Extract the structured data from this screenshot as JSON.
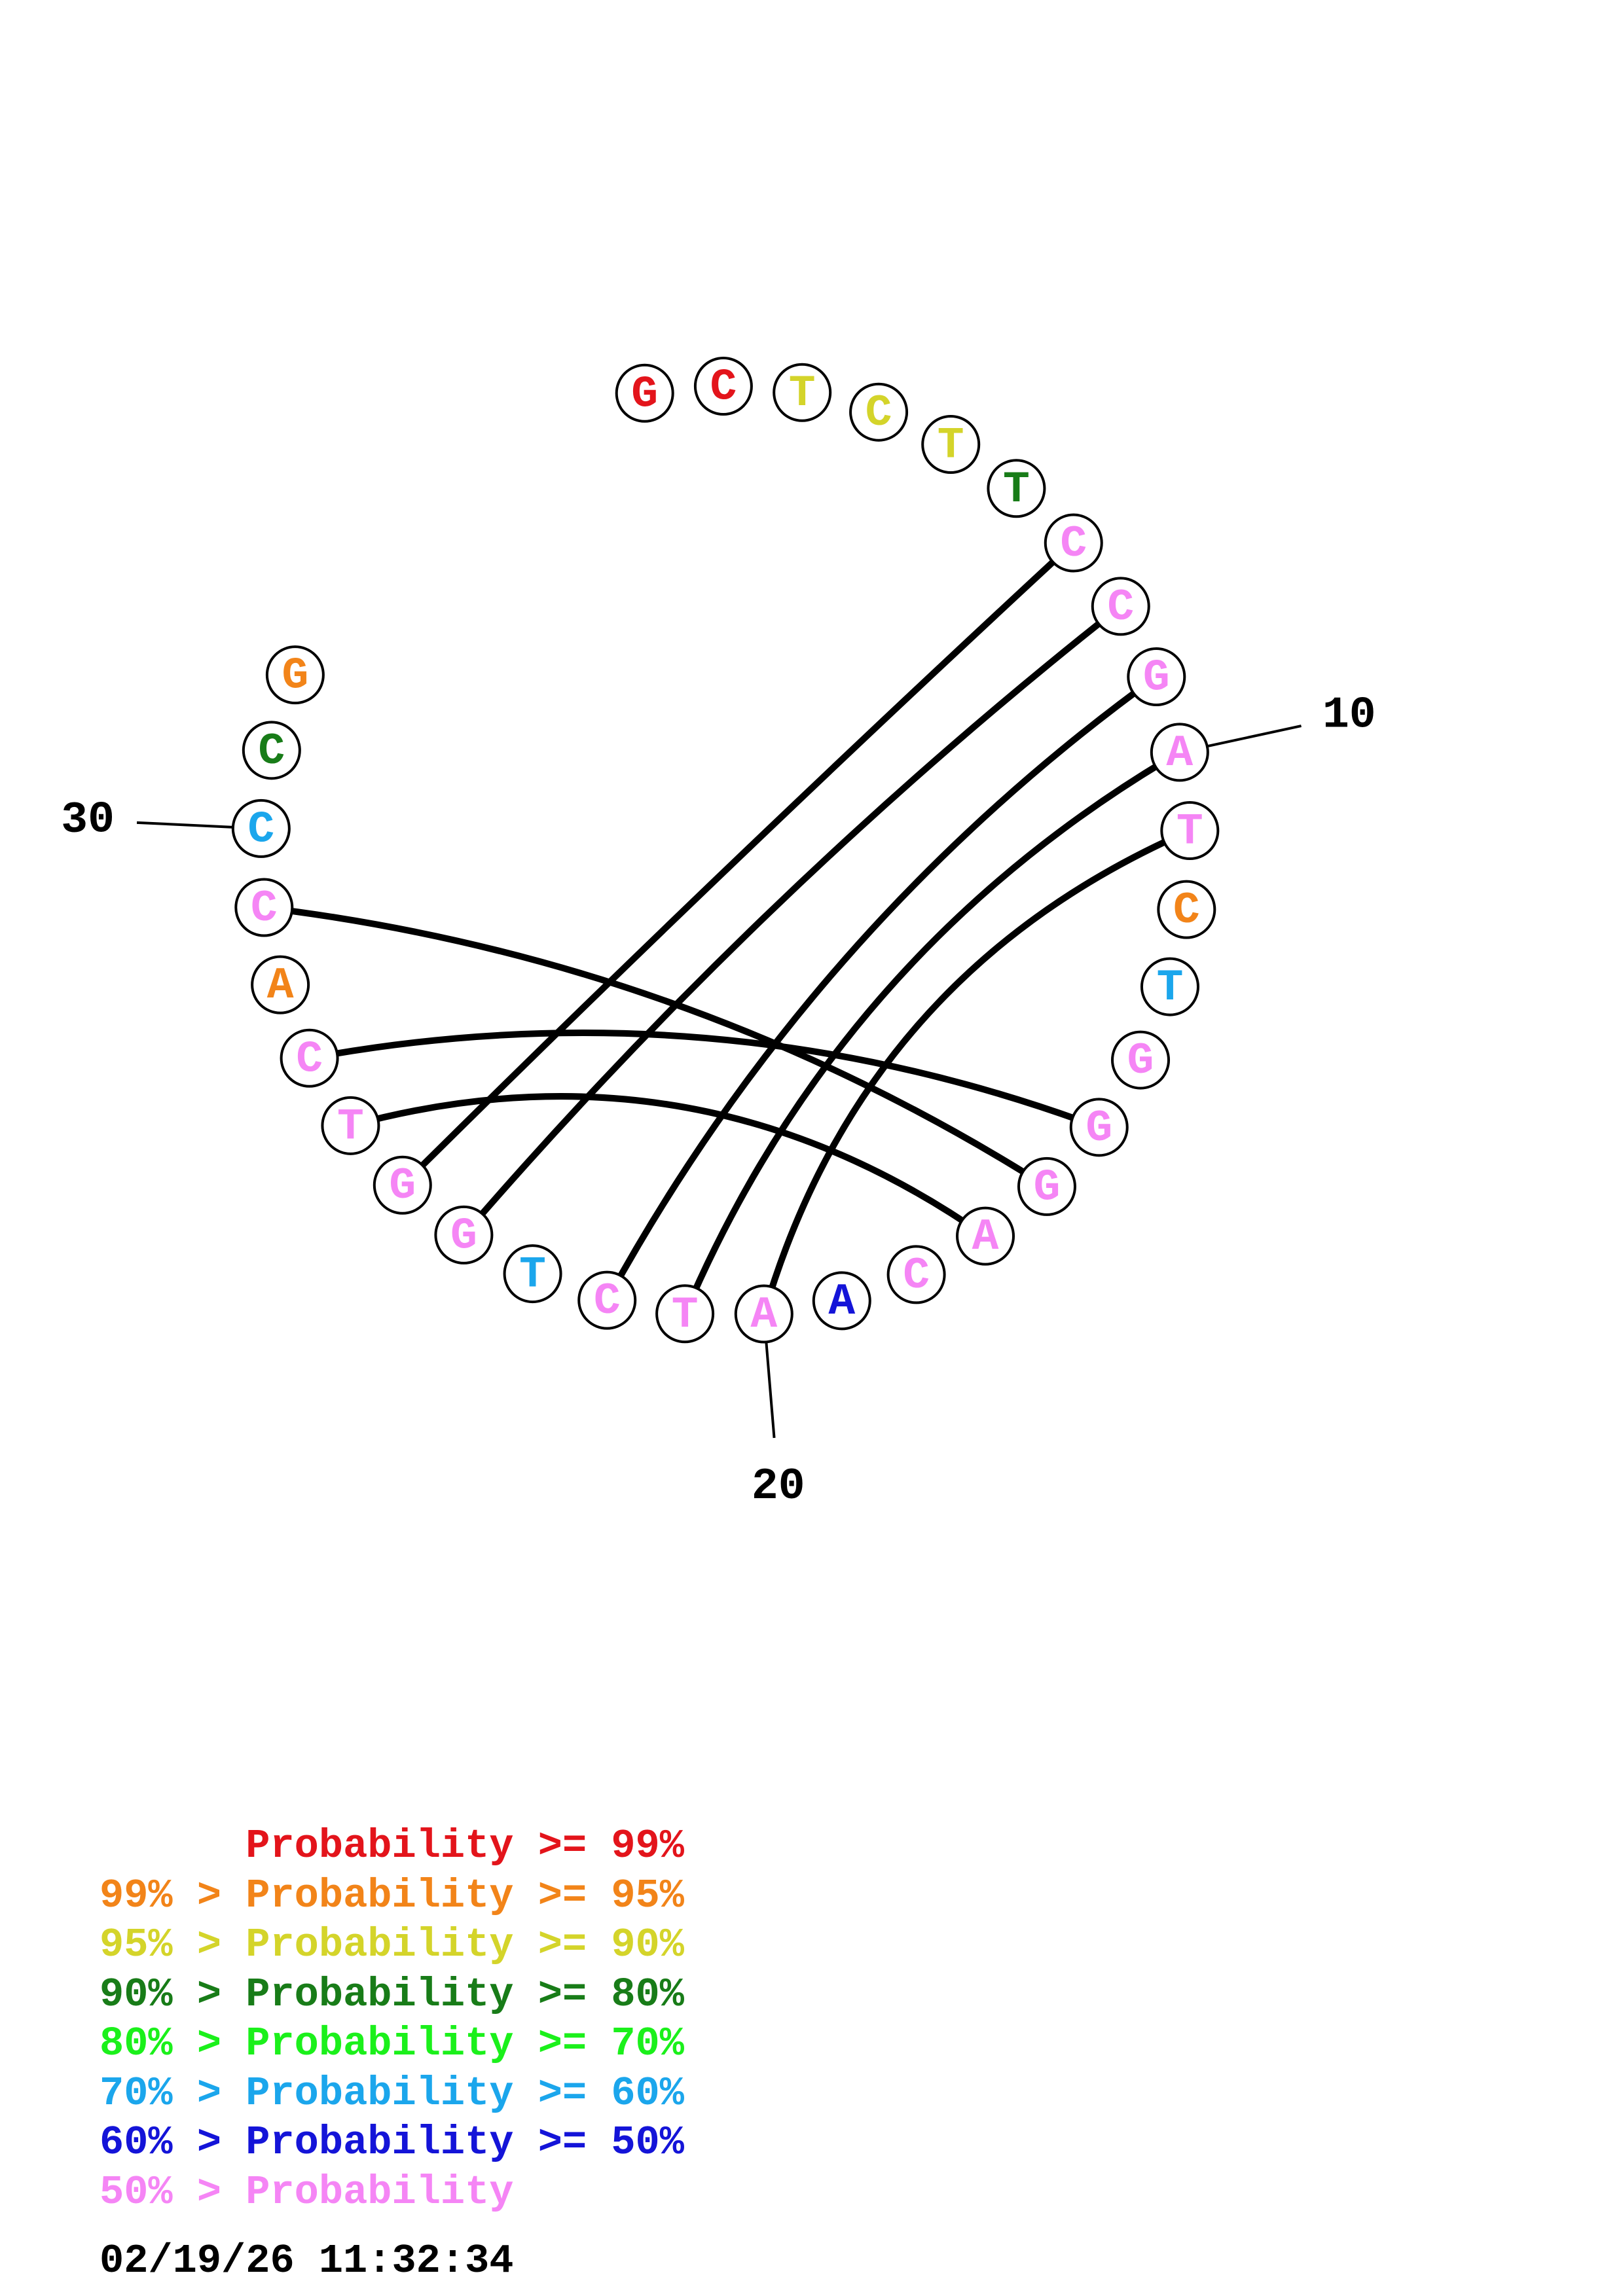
{
  "colors": {
    "p99": "#e3141b",
    "p95": "#f28419",
    "p90": "#d4d42a",
    "p80": "#187c18",
    "p70": "#1bf01b",
    "p60": "#1ba6ec",
    "p50": "#1414d8",
    "plow": "#f585f5",
    "ink": "#000000"
  },
  "nucleotides": [
    {
      "index": 1,
      "base": "G",
      "cls": "p99"
    },
    {
      "index": 2,
      "base": "C",
      "cls": "p99"
    },
    {
      "index": 3,
      "base": "T",
      "cls": "p90"
    },
    {
      "index": 4,
      "base": "C",
      "cls": "p90"
    },
    {
      "index": 5,
      "base": "T",
      "cls": "p90"
    },
    {
      "index": 6,
      "base": "T",
      "cls": "p80"
    },
    {
      "index": 7,
      "base": "C",
      "cls": "plow"
    },
    {
      "index": 8,
      "base": "C",
      "cls": "plow"
    },
    {
      "index": 9,
      "base": "G",
      "cls": "plow"
    },
    {
      "index": 10,
      "base": "A",
      "cls": "plow"
    },
    {
      "index": 11,
      "base": "T",
      "cls": "plow"
    },
    {
      "index": 12,
      "base": "C",
      "cls": "p95"
    },
    {
      "index": 13,
      "base": "T",
      "cls": "p60"
    },
    {
      "index": 14,
      "base": "G",
      "cls": "plow"
    },
    {
      "index": 15,
      "base": "G",
      "cls": "plow"
    },
    {
      "index": 16,
      "base": "G",
      "cls": "plow"
    },
    {
      "index": 17,
      "base": "A",
      "cls": "plow"
    },
    {
      "index": 18,
      "base": "C",
      "cls": "plow"
    },
    {
      "index": 19,
      "base": "A",
      "cls": "p50"
    },
    {
      "index": 20,
      "base": "A",
      "cls": "plow"
    },
    {
      "index": 21,
      "base": "T",
      "cls": "plow"
    },
    {
      "index": 22,
      "base": "C",
      "cls": "plow"
    },
    {
      "index": 23,
      "base": "T",
      "cls": "p60"
    },
    {
      "index": 24,
      "base": "G",
      "cls": "plow"
    },
    {
      "index": 25,
      "base": "G",
      "cls": "plow"
    },
    {
      "index": 26,
      "base": "T",
      "cls": "plow"
    },
    {
      "index": 27,
      "base": "C",
      "cls": "plow"
    },
    {
      "index": 28,
      "base": "A",
      "cls": "p95"
    },
    {
      "index": 29,
      "base": "C",
      "cls": "plow"
    },
    {
      "index": 30,
      "base": "C",
      "cls": "p60"
    },
    {
      "index": 31,
      "base": "C",
      "cls": "p80"
    },
    {
      "index": 32,
      "base": "G",
      "cls": "p95"
    }
  ],
  "pairs": [
    [
      7,
      25
    ],
    [
      8,
      24
    ],
    [
      9,
      22
    ],
    [
      10,
      21
    ],
    [
      11,
      20
    ],
    [
      15,
      27
    ],
    [
      16,
      29
    ],
    [
      17,
      26
    ]
  ],
  "position_labels": [
    {
      "index": 10,
      "text": "10"
    },
    {
      "index": 20,
      "text": "20"
    },
    {
      "index": 30,
      "text": "30"
    }
  ],
  "legend": [
    {
      "prefix": "",
      "middle": "Probability",
      "suffix": " >= 99%",
      "cls": "p99"
    },
    {
      "prefix": "99% > ",
      "middle": "Probability",
      "suffix": " >= 95%",
      "cls": "p95"
    },
    {
      "prefix": "95% > ",
      "middle": "Probability",
      "suffix": " >= 90%",
      "cls": "p90"
    },
    {
      "prefix": "90% > ",
      "middle": "Probability",
      "suffix": " >= 80%",
      "cls": "p80"
    },
    {
      "prefix": "80% > ",
      "middle": "Probability",
      "suffix": " >= 70%",
      "cls": "p70"
    },
    {
      "prefix": "70% > ",
      "middle": "Probability",
      "suffix": " >= 60%",
      "cls": "p60"
    },
    {
      "prefix": "60% > ",
      "middle": "Probability",
      "suffix": " >= 50%",
      "cls": "p50"
    },
    {
      "prefix": "50% > ",
      "middle": "Probability",
      "suffix": "",
      "cls": "plow"
    }
  ],
  "timestamp": "02/19/26 11:32:34"
}
